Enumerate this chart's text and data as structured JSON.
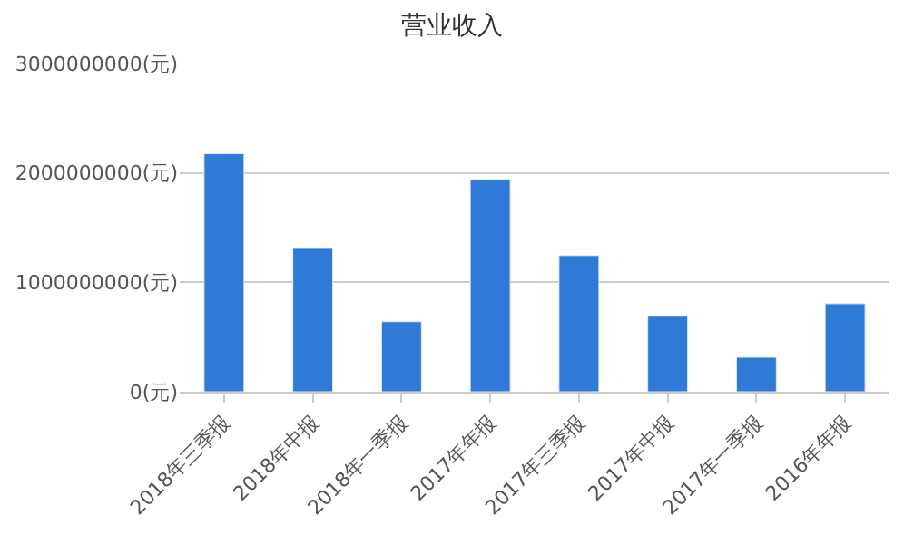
{
  "chart_data": {
    "type": "bar",
    "title": "营业收入",
    "categories": [
      "2018年三季报",
      "2018年中报",
      "2018年一季报",
      "2017年年报",
      "2017年三季报",
      "2017年中报",
      "2017年一季报",
      "2016年年报"
    ],
    "values": [
      2175000000,
      1310000000,
      640000000,
      1940000000,
      1245000000,
      690000000,
      315000000,
      805000000
    ],
    "color": "#2f7ad6",
    "ylim": [
      0,
      3000000000
    ],
    "yticks": [
      {
        "value": 0,
        "label": "0(元)"
      },
      {
        "value": 1000000000,
        "label": "1000000000(元)"
      },
      {
        "value": 2000000000,
        "label": "2000000000(元)"
      },
      {
        "value": 3000000000,
        "label": "3000000000(元)"
      }
    ],
    "grid": "y"
  }
}
